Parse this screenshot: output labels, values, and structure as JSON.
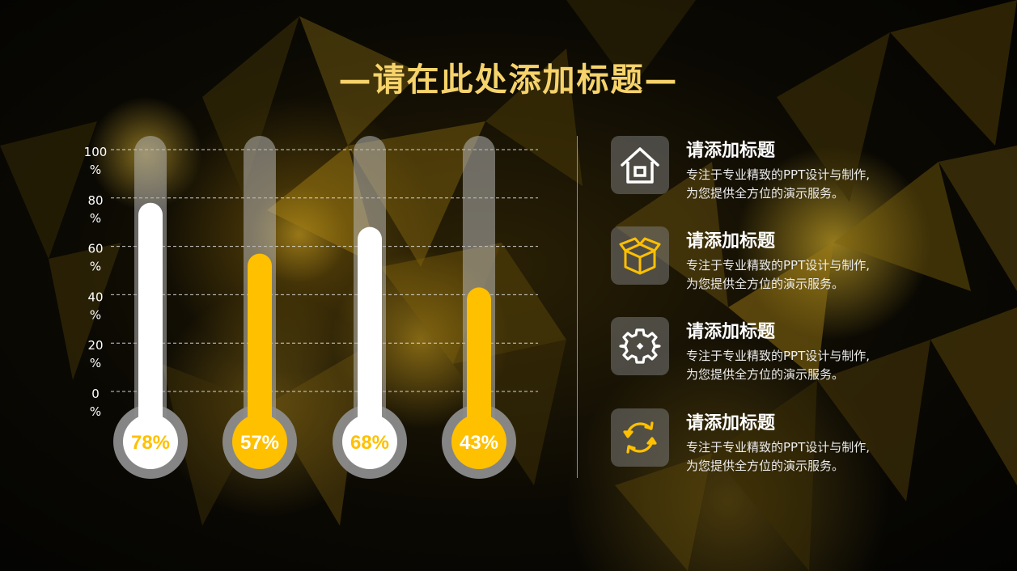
{
  "title": "—请在此处添加标题—",
  "colors": {
    "accent": "#FFC000",
    "white": "#FFFFFF",
    "title": "#F6D36B",
    "track": "#8C8C8C"
  },
  "chart_data": {
    "type": "bar",
    "style": "thermometer",
    "categories": [
      "",
      "",
      "",
      ""
    ],
    "values": [
      78,
      57,
      68,
      43
    ],
    "value_labels": [
      "78%",
      "57%",
      "68%",
      "43%"
    ],
    "fill_colors": [
      "#FFFFFF",
      "#FFC000",
      "#FFFFFF",
      "#FFC000"
    ],
    "ylim": [
      0,
      100
    ],
    "yticks": [
      0,
      20,
      40,
      60,
      80,
      100
    ],
    "ytick_labels": [
      "0\n%",
      "20\n%",
      "40\n%",
      "60\n%",
      "80\n%",
      "100\n%"
    ],
    "grid": true,
    "grid_style": "dashed"
  },
  "items": [
    {
      "icon": "house-icon",
      "title": "请添加标题",
      "desc_line1": "专注于专业精致的PPT设计与制作,",
      "desc_line2": "为您提供全方位的演示服务。"
    },
    {
      "icon": "open-box-icon",
      "title": "请添加标题",
      "desc_line1": "专注于专业精致的PPT设计与制作,",
      "desc_line2": "为您提供全方位的演示服务。"
    },
    {
      "icon": "gear-icon",
      "title": "请添加标题",
      "desc_line1": "专注于专业精致的PPT设计与制作,",
      "desc_line2": "为您提供全方位的演示服务。"
    },
    {
      "icon": "refresh-icon",
      "title": "请添加标题",
      "desc_line1": "专注于专业精致的PPT设计与制作,",
      "desc_line2": "为您提供全方位的演示服务。"
    }
  ]
}
